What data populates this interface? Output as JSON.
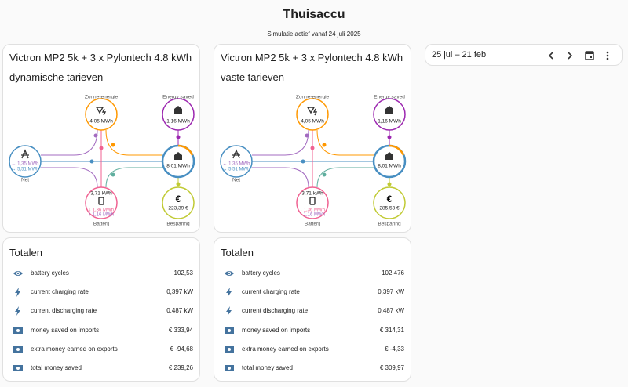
{
  "header": {
    "title": "Thuisaccu",
    "subtitle": "Simulatie actief vanaf 24 juli 2025"
  },
  "cards": [
    {
      "title": "Victron MP2 5k + 3 x Pylontech 4.8 kWh",
      "subtitle": "dynamische tarieven",
      "flow": {
        "solar": {
          "label": "Zonne-energie",
          "value": "4,05 MWh"
        },
        "saved": {
          "label": "Energy saved",
          "value": "1,16 MWh"
        },
        "grid": {
          "label": "Net",
          "in": "← 1,35 MWh",
          "out": "→ 5,51 MWh"
        },
        "home": {
          "value": "8,01 MWh"
        },
        "battery": {
          "label": "Batterij",
          "charge": "3,71 kWh",
          "in": "↓ 1,36 MWh",
          "out": "↑ 1,16 MWh"
        },
        "savings": {
          "label": "Besparing",
          "value": "223,39 €"
        }
      },
      "totals": {
        "title": "Totalen",
        "rows": [
          {
            "label": "battery cycles",
            "value": "102,53"
          },
          {
            "label": "current charging rate",
            "value": "0,397 kW"
          },
          {
            "label": "current discharging rate",
            "value": "0,487 kW"
          },
          {
            "label": "money saved on imports",
            "value": "€ 333,94"
          },
          {
            "label": "extra money earned on exports",
            "value": "€ -94,68"
          },
          {
            "label": "total money saved",
            "value": "€ 239,26"
          }
        ]
      }
    },
    {
      "title": "Victron MP2 5k + 3 x Pylontech 4.8 kWh",
      "subtitle": "vaste tarieven",
      "flow": {
        "solar": {
          "label": "Zonne-energie",
          "value": "4,05 MWh"
        },
        "saved": {
          "label": "Energy saved",
          "value": "1,16 MWh"
        },
        "grid": {
          "label": "Net",
          "in": "← 1,35 MWh",
          "out": "→ 5,51 MWh"
        },
        "home": {
          "value": "8,01 MWh"
        },
        "battery": {
          "label": "Batterij",
          "charge": "3,71 kWh",
          "in": "↓ 1,36 MWh",
          "out": "↑ 1,16 MWh"
        },
        "savings": {
          "label": "Besparing",
          "value": "285,53 €"
        }
      },
      "totals": {
        "title": "Totalen",
        "rows": [
          {
            "label": "battery cycles",
            "value": "102,476"
          },
          {
            "label": "current charging rate",
            "value": "0,397 kW"
          },
          {
            "label": "current discharging rate",
            "value": "0,487 kW"
          },
          {
            "label": "money saved on imports",
            "value": "€ 314,31"
          },
          {
            "label": "extra money earned on exports",
            "value": "€ -4,33"
          },
          {
            "label": "total money saved",
            "value": "€ 309,97"
          }
        ]
      }
    }
  ],
  "date_picker": {
    "range": "25 jul – 21 feb"
  }
}
